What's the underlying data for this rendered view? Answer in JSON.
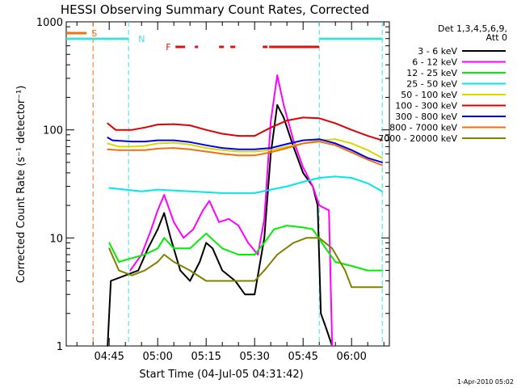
{
  "chart_data": {
    "type": "line",
    "title": "HESSI Observing Summary Count Rates, Corrected",
    "xlabel": "Start Time (04-Jul-05 04:31:42)",
    "ylabel": "Corrected Count Rate (s⁻¹ detector⁻¹)",
    "yscale": "log",
    "ylim": [
      1,
      1000
    ],
    "yticks": [
      {
        "v": 1,
        "label": "1"
      },
      {
        "v": 10,
        "label": "10"
      },
      {
        "v": 100,
        "label": "100"
      },
      {
        "v": 1000,
        "label": "1000"
      }
    ],
    "xlim": [
      "04:31:42",
      "06:11:42"
    ],
    "xticks": [
      "04:45",
      "05:00",
      "05:15",
      "05:30",
      "05:45",
      "06:00"
    ],
    "legend_title": [
      "Det 1,3,4,5,6,9,",
      "Att 0"
    ],
    "legend_position": "right",
    "footer": "1-Apr-2010 05:02",
    "flags": [
      {
        "label": "S",
        "color": "#f07010",
        "segments": [
          [
            "04:31:42",
            "04:38:00"
          ]
        ]
      },
      {
        "label": "N",
        "color": "#40e0e0",
        "segments": [
          [
            "04:31:42",
            "04:51:00"
          ],
          [
            "05:50:00",
            "06:09:30"
          ]
        ]
      },
      {
        "label": "F",
        "color": "#e01010",
        "segments": [
          [
            "05:05:30",
            "05:08:30"
          ],
          [
            "05:11:30",
            "05:12:30"
          ],
          [
            "05:19:00",
            "05:20:30"
          ],
          [
            "05:22:30",
            "05:24:00"
          ],
          [
            "05:32:30",
            "05:34:00"
          ],
          [
            "05:34:30",
            "05:50:00"
          ]
        ]
      }
    ],
    "markers": [
      {
        "time": "04:40:00",
        "color": "#f07010"
      },
      {
        "time": "04:51:00",
        "color": "#40e0e0"
      },
      {
        "time": "05:50:00",
        "color": "#40e0e0"
      },
      {
        "time": "06:09:30",
        "color": "#40e0e0"
      }
    ],
    "series": [
      {
        "name": "3 - 6 keV",
        "color": "#000000",
        "points": [
          [
            "04:44:30",
            1
          ],
          [
            "04:45:30",
            4
          ],
          [
            "04:50:00",
            4.5
          ],
          [
            "04:54:00",
            5
          ],
          [
            "04:57:00",
            8
          ],
          [
            "05:00:00",
            12
          ],
          [
            "05:02:00",
            17
          ],
          [
            "05:04:00",
            10
          ],
          [
            "05:07:00",
            5
          ],
          [
            "05:10:00",
            4
          ],
          [
            "05:13:00",
            6
          ],
          [
            "05:15:00",
            9
          ],
          [
            "05:17:00",
            8
          ],
          [
            "05:20:00",
            5
          ],
          [
            "05:24:00",
            4
          ],
          [
            "05:27:00",
            3
          ],
          [
            "05:30:00",
            3
          ],
          [
            "05:33:00",
            10
          ],
          [
            "05:35:00",
            60
          ],
          [
            "05:37:00",
            170
          ],
          [
            "05:39:00",
            130
          ],
          [
            "05:42:00",
            70
          ],
          [
            "05:45:00",
            40
          ],
          [
            "05:48:00",
            30
          ],
          [
            "05:49:30",
            20
          ],
          [
            "05:50:30",
            2
          ],
          [
            "05:52:00",
            1.5
          ],
          [
            "05:54:00",
            1
          ]
        ]
      },
      {
        "name": "6 - 12 keV",
        "color": "#ff00ff",
        "points": [
          [
            "04:51:30",
            5
          ],
          [
            "04:55:00",
            7
          ],
          [
            "04:58:00",
            12
          ],
          [
            "05:00:00",
            18
          ],
          [
            "05:02:00",
            25
          ],
          [
            "05:05:00",
            14
          ],
          [
            "05:08:00",
            10
          ],
          [
            "05:11:00",
            12
          ],
          [
            "05:14:00",
            18
          ],
          [
            "05:16:00",
            22
          ],
          [
            "05:19:00",
            14
          ],
          [
            "05:22:00",
            15
          ],
          [
            "05:25:00",
            13
          ],
          [
            "05:28:00",
            9
          ],
          [
            "05:31:00",
            7
          ],
          [
            "05:33:00",
            15
          ],
          [
            "05:35:00",
            120
          ],
          [
            "05:37:00",
            320
          ],
          [
            "05:39:00",
            170
          ],
          [
            "05:42:00",
            80
          ],
          [
            "05:45:00",
            45
          ],
          [
            "05:48:00",
            30
          ],
          [
            "05:50:00",
            20
          ],
          [
            "05:53:00",
            18
          ],
          [
            "05:54:00",
            1
          ]
        ]
      },
      {
        "name": "12 - 25 keV",
        "color": "#00ee00",
        "points": [
          [
            "04:45:00",
            9
          ],
          [
            "04:48:00",
            6
          ],
          [
            "04:52:00",
            6.5
          ],
          [
            "04:56:00",
            7
          ],
          [
            "05:00:00",
            8
          ],
          [
            "05:02:00",
            10
          ],
          [
            "05:05:00",
            8
          ],
          [
            "05:10:00",
            8
          ],
          [
            "05:15:00",
            11
          ],
          [
            "05:20:00",
            8
          ],
          [
            "05:25:00",
            7
          ],
          [
            "05:30:00",
            7
          ],
          [
            "05:33:00",
            9
          ],
          [
            "05:36:00",
            12
          ],
          [
            "05:40:00",
            13
          ],
          [
            "05:45:00",
            12.5
          ],
          [
            "05:48:00",
            12
          ],
          [
            "05:52:00",
            8
          ],
          [
            "05:55:00",
            6
          ],
          [
            "06:00:00",
            5.5
          ],
          [
            "06:05:00",
            5
          ],
          [
            "06:09:30",
            5
          ]
        ]
      },
      {
        "name": "25 - 50 keV",
        "color": "#00e8e8",
        "points": [
          [
            "04:45:00",
            29
          ],
          [
            "04:50:00",
            28
          ],
          [
            "04:55:00",
            27
          ],
          [
            "05:00:00",
            28
          ],
          [
            "05:10:00",
            27
          ],
          [
            "05:20:00",
            26
          ],
          [
            "05:30:00",
            26
          ],
          [
            "05:35:00",
            28
          ],
          [
            "05:40:00",
            30
          ],
          [
            "05:45:00",
            33
          ],
          [
            "05:50:00",
            36
          ],
          [
            "05:55:00",
            37
          ],
          [
            "06:00:00",
            36
          ],
          [
            "06:05:00",
            32
          ],
          [
            "06:09:30",
            27
          ]
        ]
      },
      {
        "name": "50 - 100 keV",
        "color": "#d8d800",
        "points": [
          [
            "04:44:30",
            75
          ],
          [
            "04:48:00",
            70
          ],
          [
            "04:52:00",
            70
          ],
          [
            "04:56:00",
            71
          ],
          [
            "05:00:00",
            75
          ],
          [
            "05:05:00",
            76
          ],
          [
            "05:10:00",
            73
          ],
          [
            "05:15:00",
            68
          ],
          [
            "05:20:00",
            65
          ],
          [
            "05:25:00",
            63
          ],
          [
            "05:30:00",
            63
          ],
          [
            "05:35:00",
            65
          ],
          [
            "05:40:00",
            70
          ],
          [
            "05:45:00",
            75
          ],
          [
            "05:50:00",
            80
          ],
          [
            "05:55:00",
            82
          ],
          [
            "06:00:00",
            75
          ],
          [
            "06:05:00",
            65
          ],
          [
            "06:09:30",
            55
          ]
        ]
      },
      {
        "name": "100 - 300 keV",
        "color": "#e00000",
        "points": [
          [
            "04:44:30",
            115
          ],
          [
            "04:47:00",
            100
          ],
          [
            "04:52:00",
            100
          ],
          [
            "04:56:00",
            105
          ],
          [
            "05:00:00",
            112
          ],
          [
            "05:05:00",
            113
          ],
          [
            "05:10:00",
            110
          ],
          [
            "05:15:00",
            100
          ],
          [
            "05:20:00",
            92
          ],
          [
            "05:25:00",
            88
          ],
          [
            "05:30:00",
            88
          ],
          [
            "05:35:00",
            105
          ],
          [
            "05:40:00",
            122
          ],
          [
            "05:45:00",
            130
          ],
          [
            "05:50:00",
            128
          ],
          [
            "05:55:00",
            115
          ],
          [
            "06:00:00",
            100
          ],
          [
            "06:05:00",
            88
          ],
          [
            "06:09:30",
            80
          ]
        ]
      },
      {
        "name": "300 - 800 keV",
        "color": "#0000ee",
        "points": [
          [
            "04:44:30",
            85
          ],
          [
            "04:46:00",
            80
          ],
          [
            "04:52:00",
            78
          ],
          [
            "04:56:00",
            78
          ],
          [
            "05:00:00",
            80
          ],
          [
            "05:05:00",
            80
          ],
          [
            "05:10:00",
            77
          ],
          [
            "05:15:00",
            72
          ],
          [
            "05:20:00",
            68
          ],
          [
            "05:25:00",
            66
          ],
          [
            "05:30:00",
            66
          ],
          [
            "05:35:00",
            68
          ],
          [
            "05:40:00",
            74
          ],
          [
            "05:45:00",
            80
          ],
          [
            "05:50:00",
            82
          ],
          [
            "05:55:00",
            75
          ],
          [
            "06:00:00",
            65
          ],
          [
            "06:05:00",
            55
          ],
          [
            "06:09:30",
            50
          ]
        ]
      },
      {
        "name": "800 - 7000 keV",
        "color": "#f07010",
        "points": [
          [
            "04:44:30",
            66
          ],
          [
            "04:48:00",
            65
          ],
          [
            "04:52:00",
            65
          ],
          [
            "04:56:00",
            65
          ],
          [
            "05:00:00",
            67
          ],
          [
            "05:05:00",
            68
          ],
          [
            "05:10:00",
            66
          ],
          [
            "05:15:00",
            63
          ],
          [
            "05:20:00",
            60
          ],
          [
            "05:25:00",
            58
          ],
          [
            "05:30:00",
            58
          ],
          [
            "05:35:00",
            62
          ],
          [
            "05:40:00",
            68
          ],
          [
            "05:45:00",
            75
          ],
          [
            "05:50:00",
            78
          ],
          [
            "05:55:00",
            72
          ],
          [
            "06:00:00",
            62
          ],
          [
            "06:05:00",
            53
          ],
          [
            "06:09:30",
            47
          ]
        ]
      },
      {
        "name": "7000 - 20000 keV",
        "color": "#808000",
        "points": [
          [
            "04:45:00",
            8
          ],
          [
            "04:48:00",
            5
          ],
          [
            "04:52:00",
            4.5
          ],
          [
            "04:56:00",
            5
          ],
          [
            "05:00:00",
            6
          ],
          [
            "05:02:00",
            7
          ],
          [
            "05:05:00",
            6
          ],
          [
            "05:10:00",
            5
          ],
          [
            "05:15:00",
            4
          ],
          [
            "05:20:00",
            4
          ],
          [
            "05:25:00",
            4
          ],
          [
            "05:30:00",
            4
          ],
          [
            "05:33:00",
            5
          ],
          [
            "05:37:00",
            7
          ],
          [
            "05:42:00",
            9
          ],
          [
            "05:46:00",
            10
          ],
          [
            "05:50:00",
            10
          ],
          [
            "05:54:00",
            8
          ],
          [
            "05:58:00",
            5
          ],
          [
            "06:00:00",
            3.5
          ],
          [
            "06:05:00",
            3.5
          ],
          [
            "06:09:30",
            3.5
          ]
        ]
      }
    ]
  }
}
